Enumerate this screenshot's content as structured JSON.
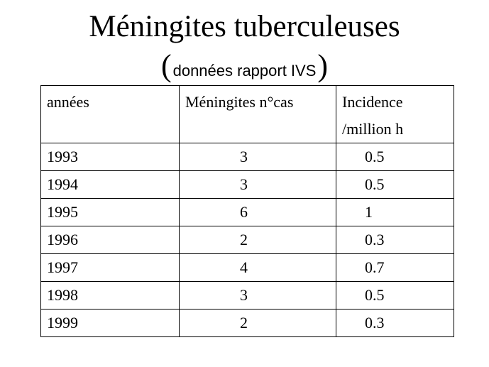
{
  "title": "Méningites tuberculeuses",
  "subtitle": {
    "open_paren": "(",
    "text": "données rapport IVS",
    "close_paren": ")"
  },
  "table": {
    "headers": [
      "années",
      "Méningites n°cas",
      "Incidence /million h"
    ],
    "rows": [
      [
        "1993",
        "3",
        "0.5"
      ],
      [
        "1994",
        "3",
        "0.5"
      ],
      [
        "1995",
        "6",
        "1"
      ],
      [
        "1996",
        "2",
        "0.3"
      ],
      [
        "1997",
        "4",
        "0.7"
      ],
      [
        "1998",
        "3",
        "0.5"
      ],
      [
        "1999",
        "2",
        "0.3"
      ]
    ]
  }
}
